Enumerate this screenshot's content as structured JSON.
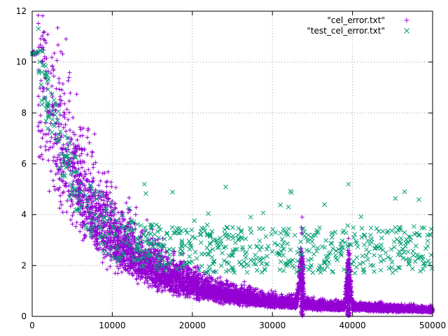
{
  "chart_data": {
    "type": "scatter",
    "title": "",
    "xlabel": "",
    "ylabel": "",
    "xlim": [
      0,
      50000
    ],
    "ylim": [
      0,
      12
    ],
    "grid": true,
    "legend_position": "top-right",
    "x_ticks": [
      "0",
      "10000",
      "20000",
      "30000",
      "40000",
      "50000"
    ],
    "y_ticks": [
      "0",
      "2",
      "4",
      "6",
      "8",
      "10",
      "12"
    ],
    "series": [
      {
        "name": "\"cel_error.txt\"",
        "marker": "plus",
        "color": "#9400d3",
        "x": [
          0,
          400,
          800,
          1000,
          1200,
          1500,
          2000,
          2500,
          3000,
          3500,
          4000,
          5000,
          6000,
          7000,
          8000,
          9000,
          10000,
          11000,
          12000,
          13000,
          14000,
          15000,
          16000,
          17000,
          18000,
          19000,
          20000,
          21000,
          22000,
          23000,
          24000,
          25000,
          26000,
          27000,
          28000,
          29000,
          30000,
          31000,
          32000,
          33000,
          33700,
          34000,
          35000,
          36000,
          37000,
          38000,
          39000,
          39500,
          40000,
          41000,
          42000,
          43000,
          44000,
          45000,
          46000,
          47000,
          48000,
          49000,
          50000
        ],
        "values": [
          10.4,
          10.4,
          10.3,
          10.0,
          9.6,
          9.2,
          8.6,
          8.0,
          7.5,
          7.0,
          6.6,
          5.8,
          5.1,
          4.5,
          4.0,
          3.6,
          3.2,
          2.9,
          2.6,
          2.3,
          2.1,
          1.9,
          1.7,
          1.55,
          1.4,
          1.3,
          1.2,
          1.1,
          1.0,
          0.93,
          0.86,
          0.8,
          0.75,
          0.7,
          0.65,
          0.61,
          0.57,
          0.54,
          0.51,
          0.49,
          2.3,
          0.46,
          0.44,
          0.42,
          0.4,
          0.38,
          0.37,
          2.1,
          0.36,
          0.35,
          0.33,
          0.32,
          0.31,
          0.3,
          0.29,
          0.28,
          0.27,
          0.26,
          0.25
        ]
      },
      {
        "name": "\"test_cel_error.txt\"",
        "marker": "cross",
        "color": "#009e73",
        "x": [
          0,
          400,
          800,
          1000,
          1200,
          1500,
          2000,
          2500,
          3000,
          3500,
          4000,
          5000,
          6000,
          7000,
          8000,
          9000,
          10000,
          11000,
          12000,
          13000,
          14000,
          15000,
          16000,
          17000,
          18000,
          19000,
          20000,
          21000,
          22000,
          23000,
          24000,
          25000,
          26000,
          27000,
          28000,
          29000,
          30000,
          31000,
          32000,
          33000,
          34000,
          35000,
          36000,
          37000,
          38000,
          39000,
          40000,
          41000,
          42000,
          43000,
          44000,
          45000,
          46000,
          47000,
          48000,
          49000,
          50000
        ],
        "values": [
          10.4,
          10.4,
          10.3,
          10.0,
          9.5,
          9.0,
          8.4,
          7.8,
          7.3,
          6.8,
          6.3,
          5.5,
          4.8,
          4.3,
          3.9,
          3.6,
          3.4,
          3.2,
          3.0,
          2.9,
          2.8,
          2.75,
          2.7,
          2.65,
          2.6,
          2.6,
          2.6,
          2.6,
          2.6,
          2.6,
          2.6,
          2.6,
          2.6,
          2.6,
          2.6,
          2.6,
          2.6,
          2.6,
          2.6,
          2.6,
          2.6,
          2.6,
          2.6,
          2.6,
          2.6,
          2.6,
          2.6,
          2.6,
          2.6,
          2.6,
          2.6,
          2.6,
          2.6,
          2.6,
          2.6,
          2.6,
          2.6
        ]
      }
    ]
  }
}
